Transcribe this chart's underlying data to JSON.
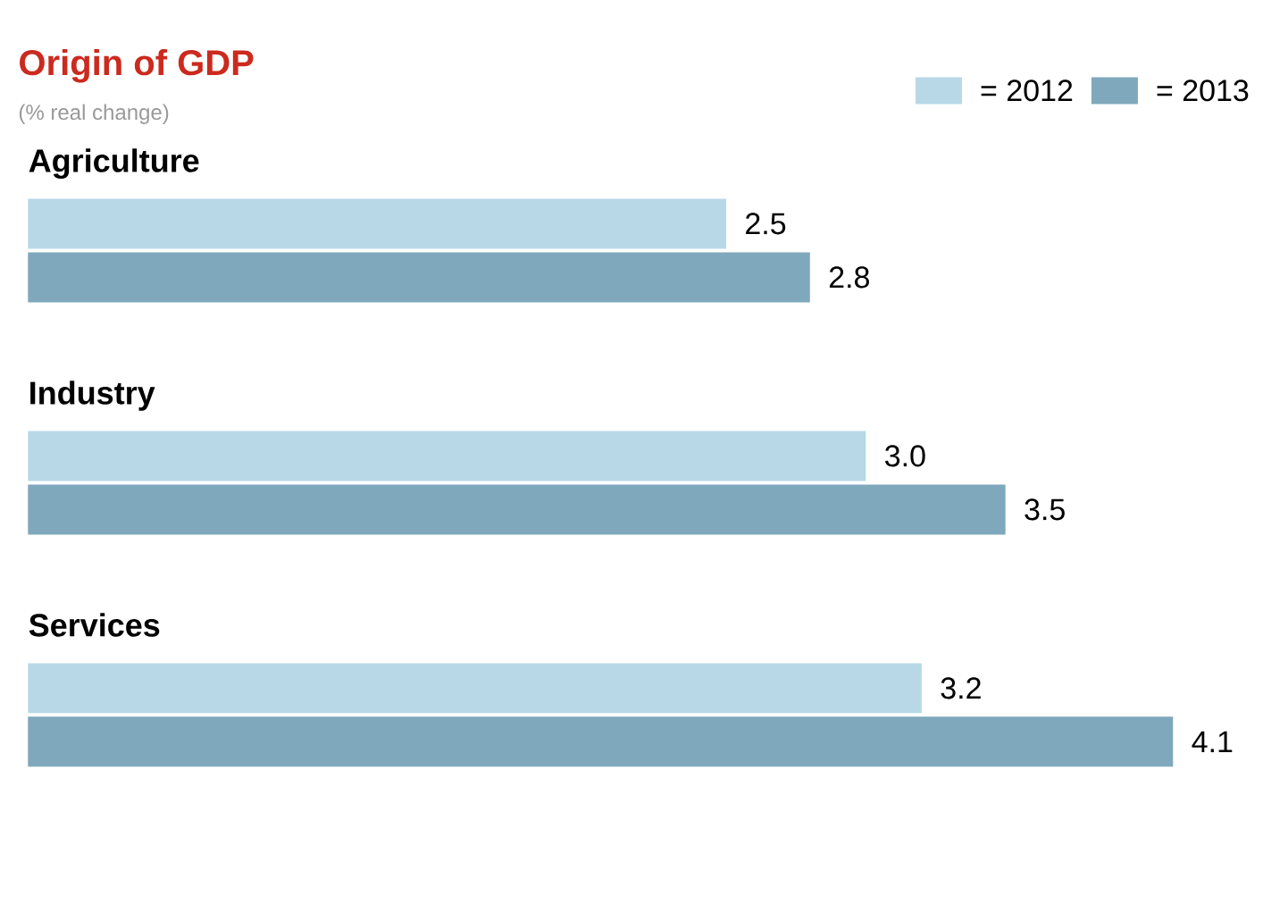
{
  "chart_data": {
    "type": "bar",
    "orientation": "horizontal",
    "title": "Origin of GDP",
    "subtitle": "(% real change)",
    "categories": [
      "Agriculture",
      "Industry",
      "Services"
    ],
    "series": [
      {
        "name": "= 2012",
        "color": "#b8d8e8",
        "values": [
          2.5,
          3.0,
          3.2
        ],
        "value_labels": [
          "2.5",
          "3.0",
          "3.2"
        ]
      },
      {
        "name": "= 2013",
        "color": "#7fa8bc",
        "values": [
          2.8,
          3.5,
          4.1
        ],
        "value_labels": [
          "2.8",
          "3.5",
          "4.1"
        ]
      }
    ],
    "legend": "top right"
  }
}
